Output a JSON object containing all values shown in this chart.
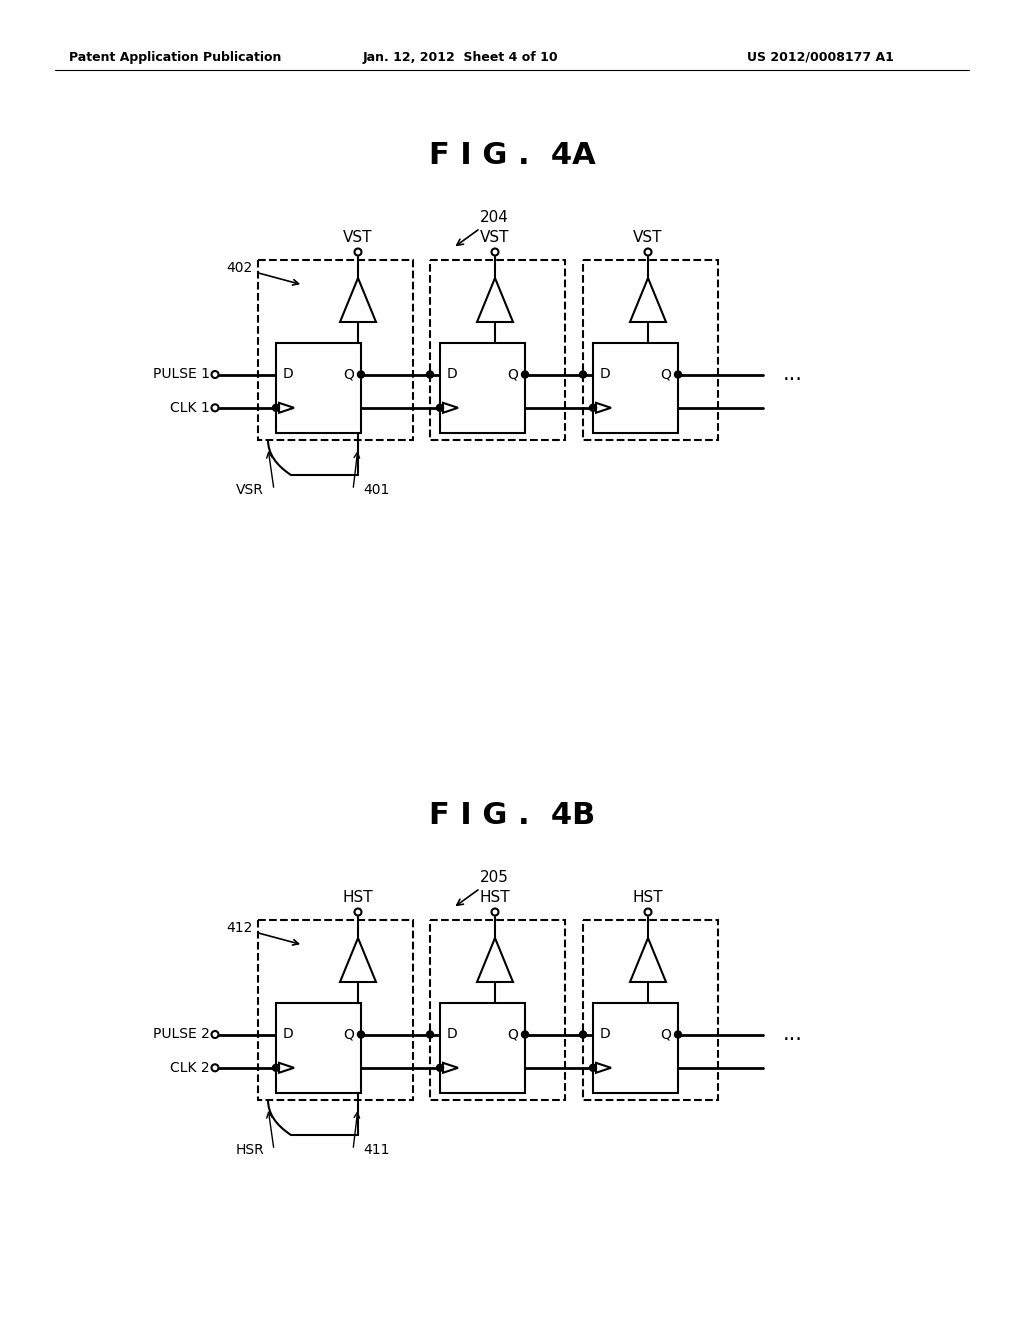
{
  "fig_width": 10.24,
  "fig_height": 13.2,
  "bg_color": "#ffffff",
  "header_left": "Patent Application Publication",
  "header_center": "Jan. 12, 2012  Sheet 4 of 10",
  "header_right": "US 2012/0008177 A1",
  "fig4a_title": "F I G .  4A",
  "fig4b_title": "F I G .  4B",
  "fig4a_label": "204",
  "fig4b_label": "205",
  "fig4a_box_label": "402",
  "fig4b_box_label": "412",
  "fig4a_sr_label": "401",
  "fig4b_sr_label": "411",
  "fig4a_vst": "VST",
  "fig4b_hst": "HST",
  "fig4a_vsr": "VSR",
  "fig4b_hsr": "HSR",
  "fig4a_pulse": "PULSE 1",
  "fig4b_pulse": "PULSE 2",
  "fig4a_clk": "CLK 1",
  "fig4b_clk": "CLK 2",
  "lw": 1.5,
  "lw_thick": 2.0,
  "fs_header": 9,
  "fs_title": 22,
  "fs_small": 10,
  "fs_label": 11
}
